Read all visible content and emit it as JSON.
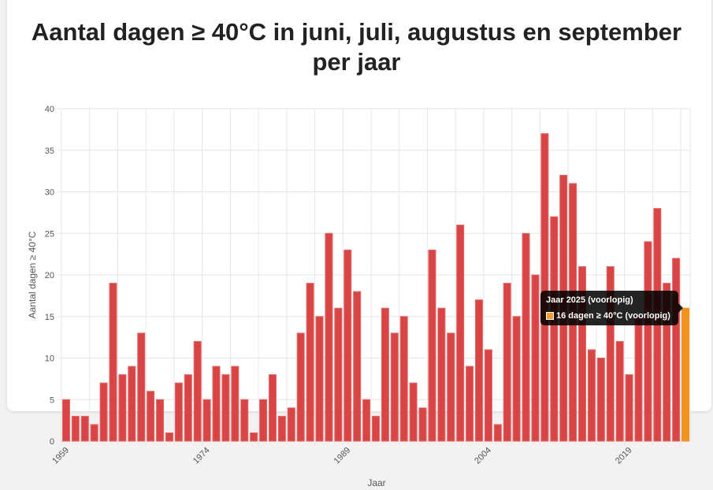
{
  "colors": {
    "bar": "#d94545",
    "bar_border": "#e06b6b",
    "highlight": "#f0941f",
    "grid": "#e6e6e6",
    "text": "#555555"
  },
  "tooltip": {
    "title": "Jaar 2025 (voorlopig)",
    "line": "16 dagen ≥ 40°C (voorlopig)"
  },
  "chart_data": {
    "type": "bar",
    "title_lines": [
      "Aantal dagen ≥ 40°C in juni, juli, augustus en september",
      "per jaar"
    ],
    "xlabel": "Jaar",
    "ylabel": "Aantal dagen ≥ 40°C",
    "ylim": [
      0,
      40
    ],
    "yticks": [
      0,
      5,
      10,
      15,
      20,
      25,
      30,
      35,
      40
    ],
    "x_tick_labels": [
      "1959",
      "1974",
      "1989",
      "2004",
      "2019"
    ],
    "start_year": 1959,
    "highlight_year": 2025,
    "categories": [
      1959,
      1960,
      1961,
      1962,
      1963,
      1964,
      1965,
      1966,
      1967,
      1968,
      1969,
      1970,
      1971,
      1972,
      1973,
      1974,
      1975,
      1976,
      1977,
      1978,
      1979,
      1980,
      1981,
      1982,
      1983,
      1984,
      1985,
      1986,
      1987,
      1988,
      1989,
      1990,
      1991,
      1992,
      1993,
      1994,
      1995,
      1996,
      1997,
      1998,
      1999,
      2000,
      2001,
      2002,
      2003,
      2004,
      2005,
      2006,
      2007,
      2008,
      2009,
      2010,
      2011,
      2012,
      2013,
      2014,
      2015,
      2016,
      2017,
      2018,
      2019,
      2020,
      2021,
      2022,
      2023,
      2024,
      2025
    ],
    "values": [
      5,
      3,
      3,
      2,
      7,
      19,
      8,
      9,
      13,
      6,
      5,
      1,
      7,
      8,
      12,
      5,
      9,
      8,
      9,
      5,
      1,
      5,
      8,
      3,
      4,
      13,
      19,
      15,
      25,
      16,
      23,
      18,
      5,
      3,
      16,
      13,
      15,
      7,
      4,
      23,
      16,
      13,
      26,
      9,
      17,
      11,
      2,
      19,
      15,
      25,
      20,
      37,
      27,
      32,
      31,
      21,
      11,
      10,
      21,
      12,
      8,
      15,
      24,
      28,
      19,
      22,
      16
    ]
  }
}
